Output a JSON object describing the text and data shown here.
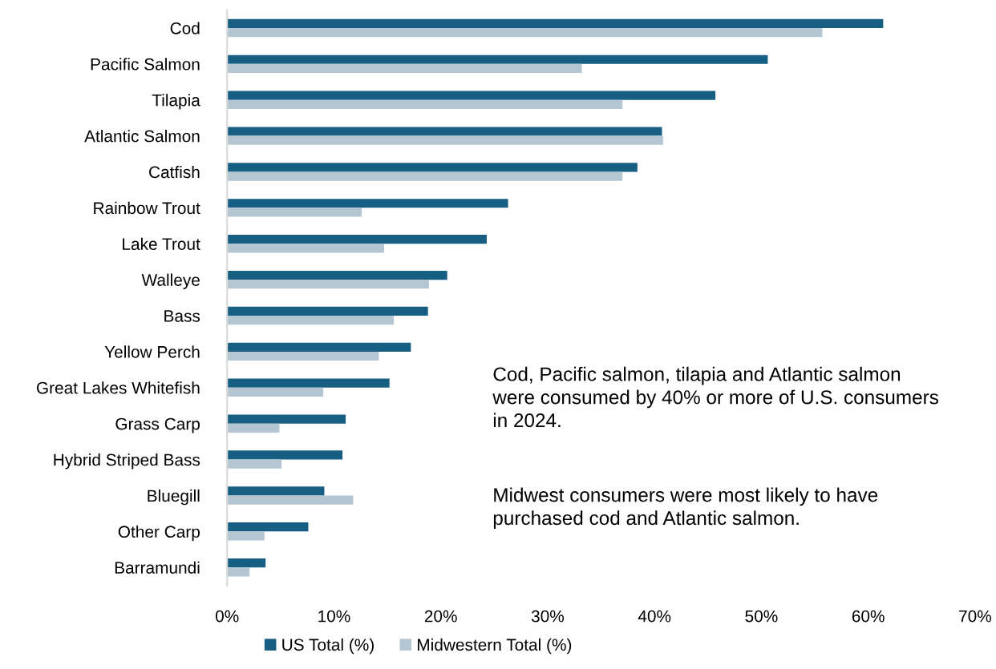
{
  "chart_data": {
    "type": "bar",
    "orientation": "horizontal",
    "categories": [
      "Cod",
      "Pacific Salmon",
      "Tilapia",
      "Atlantic Salmon",
      "Catfish",
      "Rainbow Trout",
      "Lake Trout",
      "Walleye",
      "Bass",
      "Yellow Perch",
      "Great Lakes Whitefish",
      "Grass Carp",
      "Hybrid Striped Bass",
      "Bluegill",
      "Other Carp",
      "Barramundi"
    ],
    "series": [
      {
        "name": "US Total (%)",
        "color": "#175f82",
        "values": [
          61.4,
          50.6,
          45.7,
          40.7,
          38.4,
          26.3,
          24.3,
          20.6,
          18.8,
          17.2,
          15.2,
          11.1,
          10.8,
          9.1,
          7.6,
          3.6
        ]
      },
      {
        "name": "Midwestern Total (%)",
        "color": "#b3c6d2",
        "values": [
          55.7,
          33.2,
          37.0,
          40.8,
          37.0,
          12.6,
          14.7,
          18.9,
          15.6,
          14.2,
          9.0,
          4.9,
          5.1,
          11.8,
          3.5,
          2.1
        ]
      }
    ],
    "xlim": [
      0,
      70
    ],
    "xticks": [
      {
        "value": 0,
        "label": "0%"
      },
      {
        "value": 10,
        "label": "10%"
      },
      {
        "value": 20,
        "label": "20%"
      },
      {
        "value": 30,
        "label": "30%"
      },
      {
        "value": 40,
        "label": "40%"
      },
      {
        "value": 50,
        "label": "50%"
      },
      {
        "value": 60,
        "label": "60%"
      },
      {
        "value": 70,
        "label": "70%"
      }
    ],
    "annotations": [
      "Cod, Pacific salmon, tilapia and Atlantic salmon were consumed by 40% or more of U.S. consumers in 2024.",
      "Midwest consumers were most likely to have purchased cod and Atlantic salmon."
    ],
    "grid": false,
    "legend": "bottom"
  }
}
